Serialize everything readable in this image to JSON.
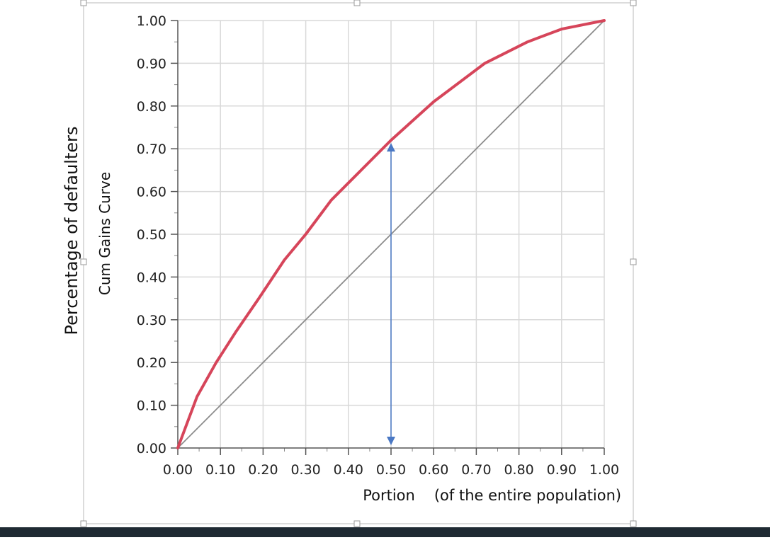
{
  "outer_label": "Percentage of defaulters",
  "annotation": {
    "label": "(of the entire population)"
  },
  "chart_data": {
    "type": "line",
    "xlabel": "Portion",
    "ylabel": "Cum Gains Curve",
    "xlim": [
      0,
      1
    ],
    "ylim": [
      0,
      1
    ],
    "x_ticks": [
      "0.00",
      "0.10",
      "0.20",
      "0.30",
      "0.40",
      "0.50",
      "0.60",
      "0.70",
      "0.80",
      "0.90",
      "1.00"
    ],
    "y_ticks": [
      "0.00",
      "0.10",
      "0.20",
      "0.30",
      "0.40",
      "0.50",
      "0.60",
      "0.70",
      "0.80",
      "0.90",
      "1.00"
    ],
    "grid": true,
    "series": [
      {
        "color": "#d6455a",
        "x": [
          0,
          0.045,
          0.09,
          0.135,
          0.19,
          0.25,
          0.3,
          0.36,
          0.43,
          0.5,
          0.6,
          0.72,
          0.82,
          0.9,
          1.0
        ],
        "y": [
          0,
          0.12,
          0.2,
          0.27,
          0.35,
          0.44,
          0.5,
          0.58,
          0.65,
          0.72,
          0.81,
          0.9,
          0.95,
          0.98,
          1.0
        ]
      },
      {
        "color": "#8c8c8c",
        "x": [
          0,
          1
        ],
        "y": [
          0,
          1
        ]
      }
    ],
    "arrow": {
      "x": 0.5,
      "y_from": 0.0,
      "y_to": 0.72,
      "color": "#4a78c4"
    }
  }
}
